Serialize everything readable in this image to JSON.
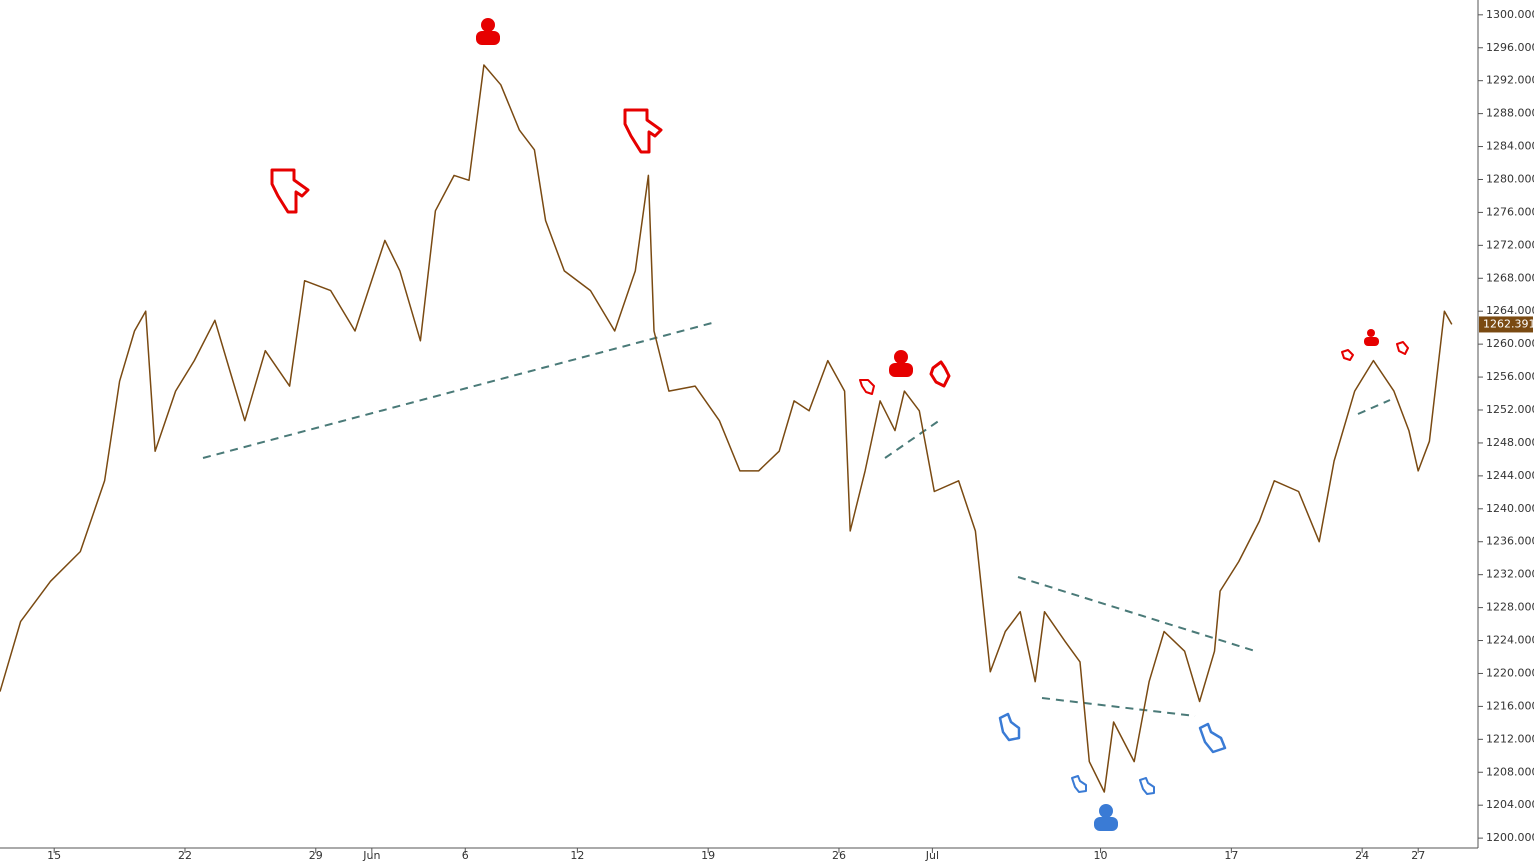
{
  "chart_data": {
    "type": "line",
    "x": [
      -2.9,
      -1.8,
      -0.2,
      1.4,
      2.7,
      3.5,
      4.3,
      4.9,
      5.4,
      6.5,
      7.5,
      8.6,
      9.4,
      10.2,
      11.3,
      12.6,
      13.4,
      14.8,
      16.1,
      17.7,
      18.5,
      19.6,
      20.4,
      21.4,
      22.2,
      23.0,
      23.9,
      24.9,
      25.7,
      26.3,
      27.3,
      28.7,
      30.0,
      31.1,
      31.8,
      32.1,
      32.9,
      34.3,
      35.6,
      36.7,
      37.7,
      38.8,
      39.6,
      40.4,
      41.4,
      42.3,
      42.6,
      43.4,
      44.2,
      45.0,
      45.5,
      46.3,
      47.1,
      48.4,
      49.3,
      50.1,
      50.9,
      51.7,
      52.5,
      53.0,
      54.1,
      54.9,
      55.4,
      56.2,
      56.7,
      57.8,
      58.6,
      59.4,
      60.5,
      61.3,
      62.1,
      62.4,
      63.4,
      64.5,
      65.3,
      66.6,
      67.7,
      68.5,
      69.6,
      70.6,
      71.7,
      72.5,
      73.0,
      73.6,
      74.4,
      74.8
    ],
    "series": [
      {
        "color": "#7a4a12",
        "values": [
          1217.8,
          1226.3,
          1231.2,
          1234.8,
          1243.4,
          1255.5,
          1261.6,
          1264.0,
          1247.0,
          1254.3,
          1258.0,
          1262.9,
          1256.8,
          1250.7,
          1259.2,
          1254.9,
          1267.7,
          1266.5,
          1261.6,
          1272.6,
          1268.9,
          1260.4,
          1276.2,
          1280.5,
          1279.9,
          1293.9,
          1291.5,
          1286.0,
          1283.6,
          1275.0,
          1268.9,
          1266.5,
          1261.6,
          1268.9,
          1280.5,
          1261.6,
          1254.3,
          1254.9,
          1250.7,
          1244.6,
          1244.6,
          1247.0,
          1253.1,
          1251.9,
          1258.0,
          1254.3,
          1237.3,
          1244.6,
          1253.1,
          1249.5,
          1254.3,
          1251.9,
          1242.1,
          1243.4,
          1237.3,
          1220.2,
          1225.1,
          1227.5,
          1219.0,
          1227.5,
          1223.9,
          1221.4,
          1209.3,
          1205.6,
          1214.1,
          1209.3,
          1219.0,
          1225.1,
          1222.7,
          1216.6,
          1222.7,
          1230.0,
          1233.6,
          1238.5,
          1243.4,
          1242.1,
          1236.0,
          1245.8,
          1254.3,
          1258.0,
          1254.3,
          1249.5,
          1244.6,
          1248.2,
          1264.0,
          1262.4
        ]
      }
    ],
    "last_price": 1262.391,
    "xlim": [
      -2.9,
      76.2
    ],
    "xticks": [
      {
        "value": 0,
        "label": "15"
      },
      {
        "value": 7,
        "label": "22"
      },
      {
        "value": 14,
        "label": "29"
      },
      {
        "value": 17,
        "label": "Jun"
      },
      {
        "value": 22,
        "label": "6"
      },
      {
        "value": 28,
        "label": "12"
      },
      {
        "value": 35,
        "label": "19"
      },
      {
        "value": 42,
        "label": "26"
      },
      {
        "value": 47,
        "label": "Jul"
      },
      {
        "value": 56,
        "label": "10"
      },
      {
        "value": 63,
        "label": "17"
      },
      {
        "value": 70,
        "label": "24"
      },
      {
        "value": 73,
        "label": "27"
      }
    ],
    "ylim": [
      1198.8,
      1301.8
    ],
    "yticks": [
      {
        "value": 1200,
        "label": "1200.000"
      },
      {
        "value": 1204,
        "label": "1204.000"
      },
      {
        "value": 1208,
        "label": "1208.000"
      },
      {
        "value": 1212,
        "label": "1212.000"
      },
      {
        "value": 1216,
        "label": "1216.000"
      },
      {
        "value": 1220,
        "label": "1220.000"
      },
      {
        "value": 1224,
        "label": "1224.000"
      },
      {
        "value": 1228,
        "label": "1228.000"
      },
      {
        "value": 1232,
        "label": "1232.000"
      },
      {
        "value": 1236,
        "label": "1236.000"
      },
      {
        "value": 1240,
        "label": "1240.000"
      },
      {
        "value": 1244,
        "label": "1244.000"
      },
      {
        "value": 1248,
        "label": "1248.000"
      },
      {
        "value": 1252,
        "label": "1252.000"
      },
      {
        "value": 1256,
        "label": "1256.000"
      },
      {
        "value": 1260,
        "label": "1260.000"
      },
      {
        "value": 1264,
        "label": "1264.000"
      },
      {
        "value": 1268,
        "label": "1268.000"
      },
      {
        "value": 1272,
        "label": "1272.000"
      },
      {
        "value": 1276,
        "label": "1276.000"
      },
      {
        "value": 1280,
        "label": "1280.000"
      },
      {
        "value": 1284,
        "label": "1284.000"
      },
      {
        "value": 1288,
        "label": "1288.000"
      },
      {
        "value": 1292,
        "label": "1292.000"
      },
      {
        "value": 1296,
        "label": "1296.000"
      },
      {
        "value": 1300,
        "label": "1300.000"
      }
    ]
  }
}
